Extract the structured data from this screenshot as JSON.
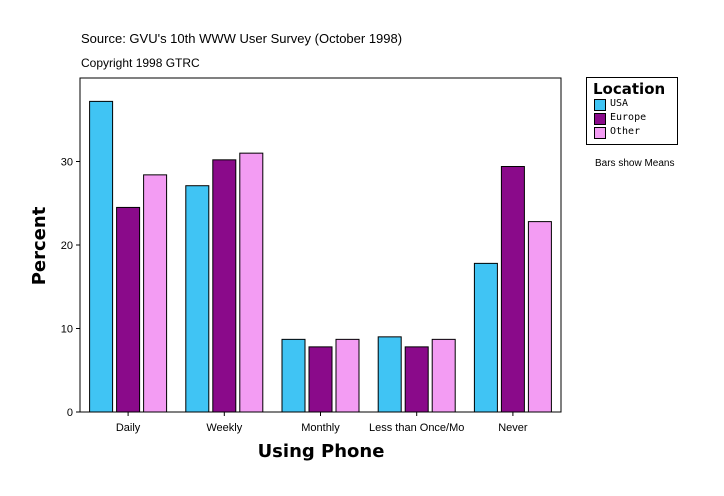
{
  "header": {
    "source": "Source: GVU's 10th WWW User Survey (October 1998)",
    "copyright": "Copyright 1998 GTRC"
  },
  "note": "Bars show Means",
  "chart_data": {
    "type": "bar",
    "xlabel": "Using Phone",
    "ylabel": "Percent",
    "categories": [
      "Daily",
      "Weekly",
      "Monthly",
      "Less than Once/Mo",
      "Never"
    ],
    "series": [
      {
        "name": "USA",
        "color": "#40c4f4",
        "values": [
          37.2,
          27.1,
          8.7,
          9.0,
          17.8
        ]
      },
      {
        "name": "Europe",
        "color": "#8a0a8a",
        "values": [
          24.5,
          30.2,
          7.8,
          7.8,
          29.4
        ]
      },
      {
        "name": "Other",
        "color": "#f39cf3",
        "values": [
          28.4,
          31.0,
          8.7,
          8.7,
          22.8
        ]
      }
    ],
    "ylim": [
      0,
      40
    ],
    "yticks": [
      0,
      10,
      20,
      30
    ],
    "grid": false,
    "legend": {
      "title": "Location",
      "position": "right"
    }
  }
}
